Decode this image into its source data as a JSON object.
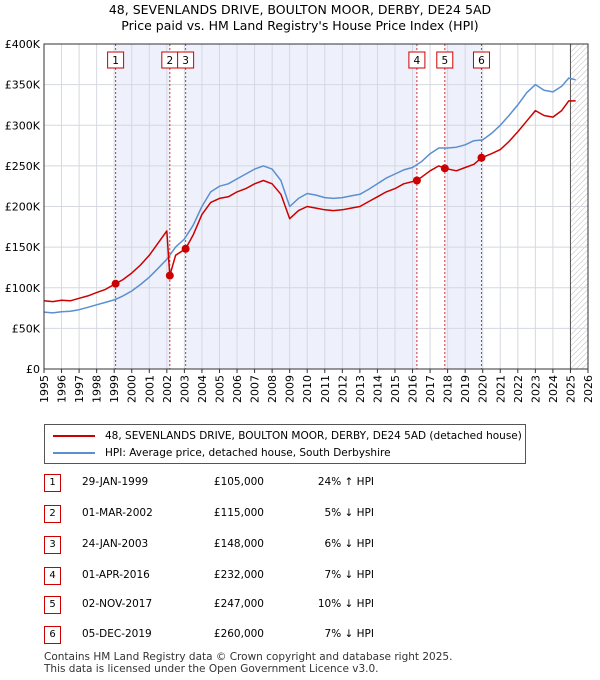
{
  "title_line1": "48, SEVENLANDS DRIVE, BOULTON MOOR, DERBY, DE24 5AD",
  "title_line2": "Price paid vs. HM Land Registry's House Price Index (HPI)",
  "chart_data": {
    "type": "line",
    "title": "Price paid vs. HM Land Registry's House Price Index (HPI)",
    "xlim": [
      1995,
      2026
    ],
    "ylim": [
      0,
      400000
    ],
    "y_ticks": [
      {
        "value": 0,
        "label": "£0"
      },
      {
        "value": 50000,
        "label": "£50K"
      },
      {
        "value": 100000,
        "label": "£100K"
      },
      {
        "value": 150000,
        "label": "£150K"
      },
      {
        "value": 200000,
        "label": "£200K"
      },
      {
        "value": 250000,
        "label": "£250K"
      },
      {
        "value": 300000,
        "label": "£300K"
      },
      {
        "value": 350000,
        "label": "£350K"
      },
      {
        "value": 400000,
        "label": "£400K"
      }
    ],
    "x_ticks": [
      "1995",
      "1996",
      "1997",
      "1998",
      "1999",
      "2000",
      "2001",
      "2002",
      "2003",
      "2004",
      "2005",
      "2006",
      "2007",
      "2008",
      "2009",
      "2010",
      "2011",
      "2012",
      "2013",
      "2014",
      "2015",
      "2016",
      "2017",
      "2018",
      "2019",
      "2020",
      "2021",
      "2022",
      "2023",
      "2024",
      "2025",
      "2026"
    ],
    "forecast_start": 2025.0,
    "series": [
      {
        "name": "48, SEVENLANDS DRIVE, BOULTON MOOR, DERBY, DE24 5AD (detached house)",
        "color": "#cc0000",
        "points": [
          [
            1995.0,
            84000
          ],
          [
            1995.5,
            83000
          ],
          [
            1996.0,
            84500
          ],
          [
            1996.5,
            84000
          ],
          [
            1997.0,
            87000
          ],
          [
            1997.5,
            90000
          ],
          [
            1998.0,
            94000
          ],
          [
            1998.5,
            98000
          ],
          [
            1999.08,
            105000
          ],
          [
            1999.5,
            110000
          ],
          [
            2000.0,
            118000
          ],
          [
            2000.5,
            128000
          ],
          [
            2001.0,
            140000
          ],
          [
            2001.5,
            155000
          ],
          [
            2002.0,
            170000
          ],
          [
            2002.17,
            115000
          ],
          [
            2002.5,
            140000
          ],
          [
            2003.07,
            148000
          ],
          [
            2003.5,
            165000
          ],
          [
            2004.0,
            190000
          ],
          [
            2004.5,
            205000
          ],
          [
            2005.0,
            210000
          ],
          [
            2005.5,
            212000
          ],
          [
            2006.0,
            218000
          ],
          [
            2006.5,
            222000
          ],
          [
            2007.0,
            228000
          ],
          [
            2007.5,
            232000
          ],
          [
            2008.0,
            228000
          ],
          [
            2008.5,
            215000
          ],
          [
            2009.0,
            185000
          ],
          [
            2009.5,
            195000
          ],
          [
            2010.0,
            200000
          ],
          [
            2010.5,
            198000
          ],
          [
            2011.0,
            196000
          ],
          [
            2011.5,
            195000
          ],
          [
            2012.0,
            196000
          ],
          [
            2012.5,
            198000
          ],
          [
            2013.0,
            200000
          ],
          [
            2013.5,
            206000
          ],
          [
            2014.0,
            212000
          ],
          [
            2014.5,
            218000
          ],
          [
            2015.0,
            222000
          ],
          [
            2015.5,
            228000
          ],
          [
            2016.25,
            232000
          ],
          [
            2016.5,
            236000
          ],
          [
            2017.0,
            244000
          ],
          [
            2017.5,
            250000
          ],
          [
            2017.84,
            247000
          ],
          [
            2018.5,
            244000
          ],
          [
            2019.0,
            248000
          ],
          [
            2019.5,
            252000
          ],
          [
            2019.93,
            260000
          ],
          [
            2020.5,
            265000
          ],
          [
            2021.0,
            270000
          ],
          [
            2021.5,
            280000
          ],
          [
            2022.0,
            292000
          ],
          [
            2022.5,
            305000
          ],
          [
            2023.0,
            318000
          ],
          [
            2023.5,
            312000
          ],
          [
            2024.0,
            310000
          ],
          [
            2024.5,
            318000
          ],
          [
            2024.9,
            330000
          ],
          [
            2025.3,
            330000
          ]
        ]
      },
      {
        "name": "HPI: Average price, detached house, South Derbyshire",
        "color": "#5b8fd0",
        "points": [
          [
            1995.0,
            70000
          ],
          [
            1995.5,
            69000
          ],
          [
            1996.0,
            70500
          ],
          [
            1996.5,
            71000
          ],
          [
            1997.0,
            73000
          ],
          [
            1997.5,
            76000
          ],
          [
            1998.0,
            79000
          ],
          [
            1998.5,
            82000
          ],
          [
            1999.0,
            85000
          ],
          [
            1999.5,
            90000
          ],
          [
            2000.0,
            96000
          ],
          [
            2000.5,
            104000
          ],
          [
            2001.0,
            113000
          ],
          [
            2001.5,
            124000
          ],
          [
            2002.0,
            135000
          ],
          [
            2002.5,
            150000
          ],
          [
            2003.0,
            160000
          ],
          [
            2003.5,
            177000
          ],
          [
            2004.0,
            200000
          ],
          [
            2004.5,
            218000
          ],
          [
            2005.0,
            225000
          ],
          [
            2005.5,
            228000
          ],
          [
            2006.0,
            234000
          ],
          [
            2006.5,
            240000
          ],
          [
            2007.0,
            246000
          ],
          [
            2007.5,
            250000
          ],
          [
            2008.0,
            246000
          ],
          [
            2008.5,
            232000
          ],
          [
            2009.0,
            200000
          ],
          [
            2009.5,
            210000
          ],
          [
            2010.0,
            216000
          ],
          [
            2010.5,
            214000
          ],
          [
            2011.0,
            211000
          ],
          [
            2011.5,
            210000
          ],
          [
            2012.0,
            211000
          ],
          [
            2012.5,
            213000
          ],
          [
            2013.0,
            215000
          ],
          [
            2013.5,
            221000
          ],
          [
            2014.0,
            228000
          ],
          [
            2014.5,
            235000
          ],
          [
            2015.0,
            240000
          ],
          [
            2015.5,
            245000
          ],
          [
            2016.0,
            248000
          ],
          [
            2016.5,
            255000
          ],
          [
            2017.0,
            265000
          ],
          [
            2017.5,
            272000
          ],
          [
            2018.0,
            272000
          ],
          [
            2018.5,
            273000
          ],
          [
            2019.0,
            276000
          ],
          [
            2019.5,
            281000
          ],
          [
            2020.0,
            282000
          ],
          [
            2020.5,
            290000
          ],
          [
            2021.0,
            300000
          ],
          [
            2021.5,
            312000
          ],
          [
            2022.0,
            325000
          ],
          [
            2022.5,
            340000
          ],
          [
            2023.0,
            350000
          ],
          [
            2023.5,
            343000
          ],
          [
            2024.0,
            341000
          ],
          [
            2024.5,
            348000
          ],
          [
            2024.9,
            358000
          ],
          [
            2025.3,
            356000
          ]
        ]
      }
    ],
    "sales": [
      {
        "label": "1",
        "x": 1999.08,
        "price": 105000
      },
      {
        "label": "2",
        "x": 2002.17,
        "price": 115000
      },
      {
        "label": "3",
        "x": 2003.07,
        "price": 148000
      },
      {
        "label": "4",
        "x": 2016.25,
        "price": 232000
      },
      {
        "label": "5",
        "x": 2017.84,
        "price": 247000
      },
      {
        "label": "6",
        "x": 2019.93,
        "price": 260000
      }
    ],
    "shaded_periods": [
      [
        1999.08,
        2002.17
      ],
      [
        2003.07,
        2016.25
      ],
      [
        2017.84,
        2019.93
      ]
    ]
  },
  "legend": {
    "property": "48, SEVENLANDS DRIVE, BOULTON MOOR, DERBY, DE24 5AD (detached house)",
    "hpi": "HPI: Average price, detached house, South Derbyshire",
    "property_color": "#cc0000",
    "hpi_color": "#5b8fd0"
  },
  "transactions": [
    {
      "num": "1",
      "date": "29-JAN-1999",
      "price": "£105,000",
      "hpi": "24% ↑ HPI"
    },
    {
      "num": "2",
      "date": "01-MAR-2002",
      "price": "£115,000",
      "hpi": "5% ↓ HPI"
    },
    {
      "num": "3",
      "date": "24-JAN-2003",
      "price": "£148,000",
      "hpi": "6% ↓ HPI"
    },
    {
      "num": "4",
      "date": "01-APR-2016",
      "price": "£232,000",
      "hpi": "7% ↓ HPI"
    },
    {
      "num": "5",
      "date": "02-NOV-2017",
      "price": "£247,000",
      "hpi": "10% ↓ HPI"
    },
    {
      "num": "6",
      "date": "05-DEC-2019",
      "price": "£260,000",
      "hpi": "7% ↓ HPI"
    }
  ],
  "footer_line1": "Contains HM Land Registry data © Crown copyright and database right 2025.",
  "footer_line2": "This data is licensed under the Open Government Licence v3.0."
}
